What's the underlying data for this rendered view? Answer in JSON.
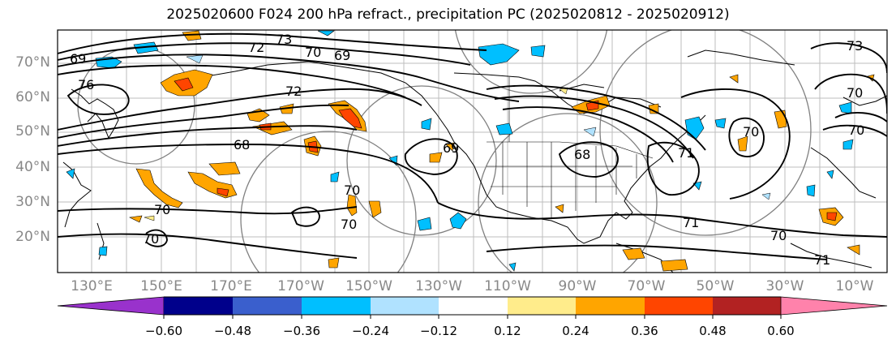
{
  "title": "2025020600 F024 200 hPa refract., precipitation PC (2025020812 - 2025020912)",
  "lat_labels": [
    "70°N",
    "60°N",
    "50°N",
    "40°N",
    "30°N",
    "20°N"
  ],
  "lon_labels": [
    "130°E",
    "150°E",
    "170°E",
    "170°W",
    "150°W",
    "130°W",
    "110°W",
    "90°W",
    "70°W",
    "50°W",
    "30°W",
    "10°W"
  ],
  "contour_labels": [
    "73",
    "72",
    "70",
    "69",
    "76",
    "72",
    "68",
    "69",
    "69",
    "70",
    "70",
    "70",
    "70",
    "71",
    "70",
    "71",
    "70",
    "73",
    "70",
    "71",
    "70",
    "68"
  ],
  "colorbar": {
    "tick_labels": [
      "−0.60",
      "−0.48",
      "−0.36",
      "−0.24",
      "−0.12",
      "0.12",
      "0.24",
      "0.36",
      "0.48",
      "0.60"
    ],
    "colors": [
      "#9932CC",
      "#00008B",
      "#3A5FCD",
      "#00BFFF",
      "#B0E2FF",
      "#FFFFFF",
      "#FFEC8B",
      "#FFA500",
      "#FF4500",
      "#B22222",
      "#FF82AB"
    ]
  }
}
